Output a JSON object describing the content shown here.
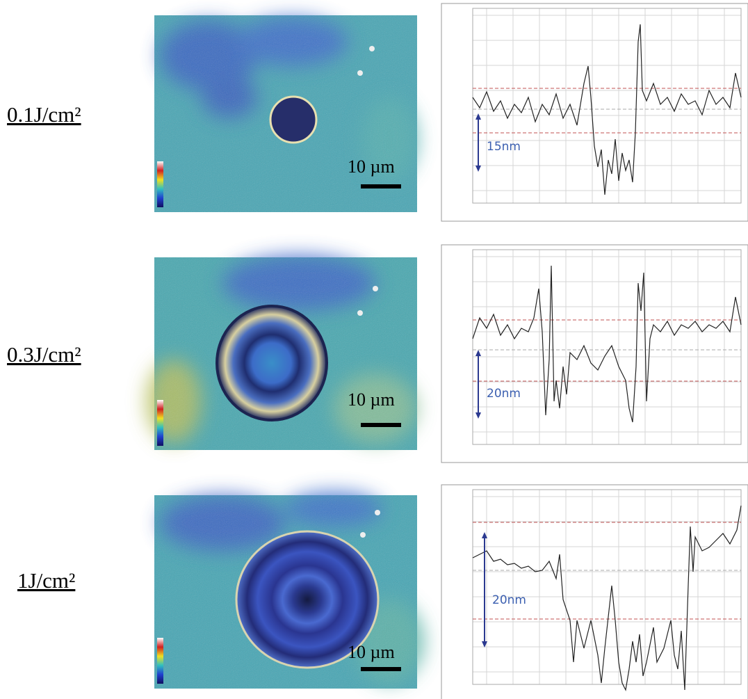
{
  "rows": [
    {
      "label": "0.1J/cm²",
      "scale_bar": "10 µm",
      "depth": "15nm"
    },
    {
      "label": "0.3J/cm²",
      "scale_bar": "10 µm",
      "depth": "20nm"
    },
    {
      "label": "1J/cm²",
      "scale_bar": "10 µm",
      "depth": "20nm"
    }
  ]
}
